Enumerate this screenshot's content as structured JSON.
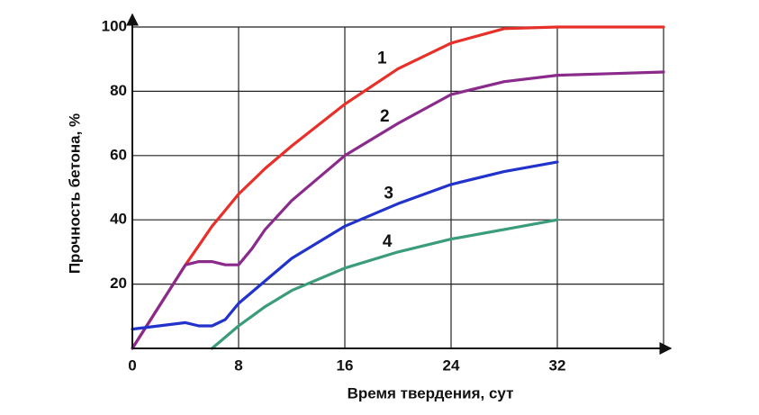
{
  "chart_data": {
    "type": "line",
    "x_label": "Время твердения, сут",
    "y_label": "Прочность бетона, %",
    "x": [
      0,
      2,
      4,
      5,
      6,
      7,
      8,
      9,
      10,
      12,
      16,
      20,
      24,
      28,
      32,
      36,
      40
    ],
    "series": [
      {
        "name": "1",
        "color": "#e8302a",
        "values": [
          0,
          13,
          26,
          32,
          38,
          43,
          48,
          52,
          56,
          63,
          76,
          87,
          95,
          99.5,
          100,
          100,
          100
        ]
      },
      {
        "name": "2",
        "color": "#8a2b8c",
        "values": [
          0,
          13,
          26,
          27,
          27,
          26,
          26,
          31,
          37,
          46,
          60,
          70,
          79,
          83,
          85,
          85.5,
          86
        ]
      },
      {
        "name": "3",
        "color": "#2233cc",
        "values": [
          6,
          7,
          8,
          7,
          7,
          9,
          14,
          17.5,
          21,
          28,
          38,
          45,
          51,
          55,
          58,
          null,
          null
        ]
      },
      {
        "name": "4",
        "color": "#3a9c7c",
        "values": [
          null,
          null,
          null,
          null,
          0,
          3.5,
          7,
          10,
          13,
          18,
          25,
          30,
          34,
          37,
          40,
          null,
          null
        ]
      }
    ],
    "xlim": [
      0,
      40
    ],
    "ylim": [
      0,
      100
    ],
    "xticks": [
      0,
      8,
      16,
      24,
      32
    ],
    "yticks": [
      20,
      40,
      60,
      80,
      100
    ],
    "grid": true
  }
}
